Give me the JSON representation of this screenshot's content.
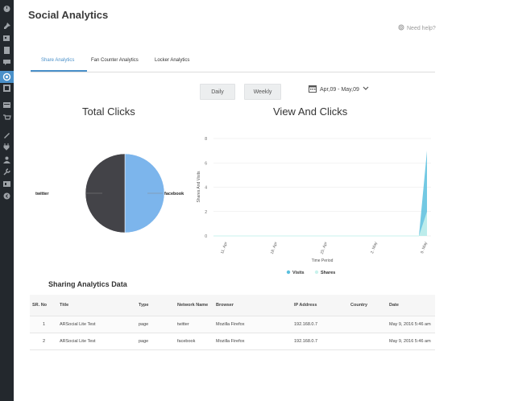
{
  "page": {
    "title": "Social Analytics",
    "help_label": "Need help?"
  },
  "tabs": [
    {
      "label": "Share Analytics",
      "active": true
    },
    {
      "label": "Fan Counter Analytics",
      "active": false
    },
    {
      "label": "Locker Analytics",
      "active": false
    }
  ],
  "controls": {
    "daily_label": "Daily",
    "weekly_label": "Weekly",
    "date_range": "Apr,09 - May,09"
  },
  "total_clicks": {
    "title": "Total Clicks",
    "labels": {
      "left": "twitter",
      "right": "facebook"
    },
    "chart_data": {
      "type": "pie",
      "slices": [
        {
          "label": "twitter",
          "value": 1,
          "color": "#434348"
        },
        {
          "label": "facebook",
          "value": 1,
          "color": "#7cb5ec"
        }
      ]
    }
  },
  "view_clicks": {
    "title": "View And Clicks",
    "chart_data": {
      "type": "area",
      "x": [
        "11. Apr",
        "18. Apr",
        "25. Apr",
        "2. May",
        "9. May"
      ],
      "xlabel": "Time Period",
      "ylabel": "Shares And Visits",
      "ylim": [
        0,
        8
      ],
      "yticks": [
        "0",
        "2",
        "4",
        "6",
        "8"
      ],
      "series": [
        {
          "name": "Visits",
          "color": "#5bc0de",
          "end_value": 7
        },
        {
          "name": "Shares",
          "color": "#c9f2ec",
          "end_value": 2
        }
      ],
      "legend": "bottom"
    }
  },
  "table": {
    "title": "Sharing Analytics Data",
    "columns": [
      "SR. No",
      "Title",
      "Type",
      "Network Name",
      "Browser",
      "IP Address",
      "Country",
      "Date"
    ],
    "rows": [
      [
        "1",
        "ARSocial Lite Test",
        "page",
        "twitter",
        "Mozilla Firefox",
        "192.168.0.7",
        "",
        "May 9, 2016 5:46 am"
      ],
      [
        "2",
        "ARSocial Lite Test",
        "page",
        "facebook",
        "Mozilla Firefox",
        "192.168.0.7",
        "",
        "May 9, 2016 5:46 am"
      ]
    ]
  },
  "icons": {
    "sidebar": [
      "dashboard-icon",
      "pin-icon",
      "media-icon",
      "pages-icon",
      "comments-icon",
      "social-icon",
      "analytics-icon",
      "forms-icon",
      "store-icon",
      "appearance-icon",
      "plugins-icon",
      "users-icon",
      "tools-icon",
      "settings-icon",
      "collapse-icon"
    ],
    "help": "life-ring-icon",
    "calendar": "calendar-icon",
    "chevron": "chevron-down-icon"
  }
}
